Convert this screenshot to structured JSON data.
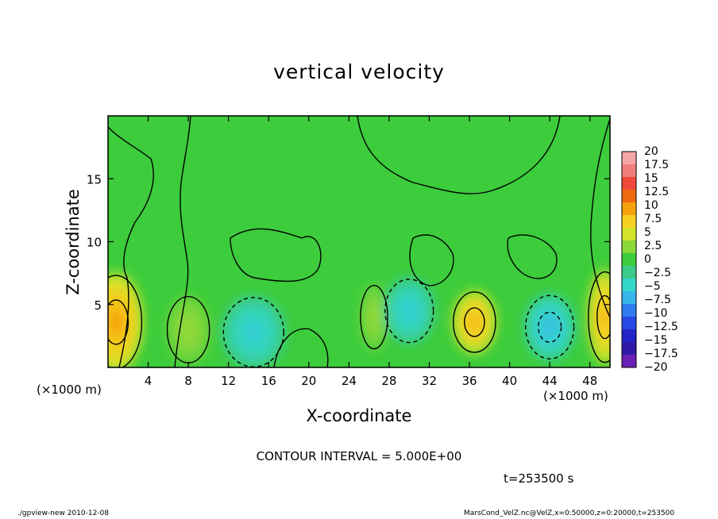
{
  "chart_data": {
    "type": "heatmap",
    "title": "vertical velocity",
    "xlabel": "X-coordinate",
    "ylabel": "Z-coordinate",
    "x_unit_label": "(×1000 m)",
    "z_unit_label": "(×1000 m)",
    "xlim": [
      0,
      50
    ],
    "ylim": [
      0,
      20
    ],
    "x_ticks": [
      4,
      8,
      12,
      16,
      20,
      24,
      28,
      32,
      36,
      40,
      44,
      48
    ],
    "y_ticks": [
      5,
      10,
      15
    ],
    "colorbar": {
      "levels": [
        "20",
        "17.5",
        "15",
        "12.5",
        "10",
        "7.5",
        "5",
        "2.5",
        "0",
        "−2.5",
        "−5",
        "−7.5",
        "−10",
        "−12.5",
        "−15",
        "−17.5",
        "−20"
      ],
      "colors": [
        "#f4a6a6",
        "#f07c7c",
        "#f24a3a",
        "#f06a12",
        "#f5a20c",
        "#f7d020",
        "#d2e32a",
        "#8ad83a",
        "#3ccc3c",
        "#3ccb8a",
        "#33d7c8",
        "#38b6ec",
        "#2f7bf0",
        "#2a48e6",
        "#2323c8",
        "#3018a8",
        "#6a20b4"
      ]
    },
    "features": [
      {
        "x": 0.8,
        "z": 3.6,
        "value": 10
      },
      {
        "x": 8.0,
        "z": 3.0,
        "value": 3
      },
      {
        "x": 14.5,
        "z": 2.8,
        "value": -6
      },
      {
        "x": 26.5,
        "z": 4.0,
        "value": 3
      },
      {
        "x": 30.0,
        "z": 4.5,
        "value": -6
      },
      {
        "x": 36.5,
        "z": 3.6,
        "value": 9
      },
      {
        "x": 44.0,
        "z": 3.2,
        "value": -7
      },
      {
        "x": 49.5,
        "z": 4.0,
        "value": 9
      }
    ],
    "contour_interval_text": "CONTOUR INTERVAL = 5.000E+00",
    "time_text": "t=253500 s"
  },
  "footer": {
    "left": "./gpview-new   2010-12-08",
    "right": "MarsCond_VelZ.nc@VelZ,x=0:50000,z=0:20000,t=253500"
  }
}
